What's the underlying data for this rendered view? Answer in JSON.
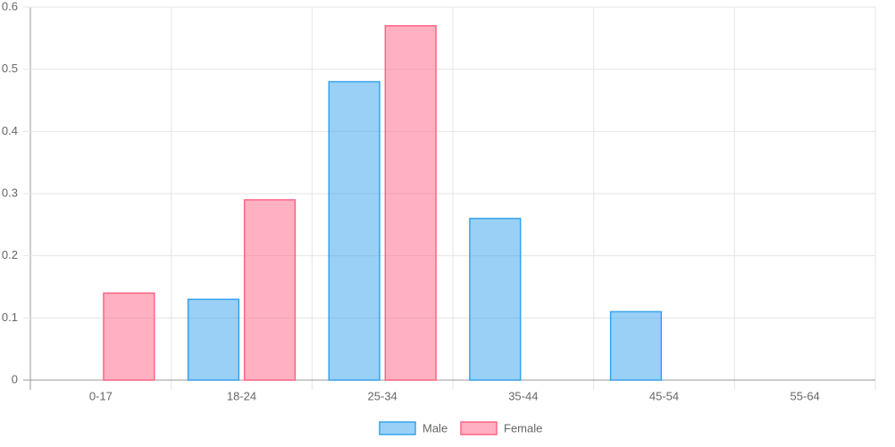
{
  "chart_data": {
    "type": "bar",
    "categories": [
      "0-17",
      "18-24",
      "25-34",
      "35-44",
      "45-54",
      "55-64"
    ],
    "series": [
      {
        "name": "Male",
        "color": "#36a2eb",
        "values": [
          0,
          0.13,
          0.48,
          0.26,
          0.11,
          0
        ]
      },
      {
        "name": "Female",
        "color": "#ff6384",
        "values": [
          0.14,
          0.29,
          0.57,
          0,
          0,
          0
        ]
      }
    ],
    "ylim": [
      0,
      0.6
    ],
    "yticks": [
      0,
      0.1,
      0.2,
      0.3,
      0.4,
      0.5,
      0.6
    ],
    "grid": true,
    "legend": "bottom"
  }
}
